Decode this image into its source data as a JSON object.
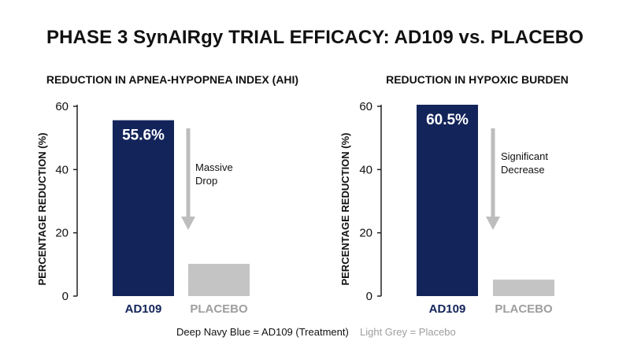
{
  "title": "PHASE 3 SynAIRgy TRIAL EFFICACY: AD109 vs. PLACEBO",
  "colors": {
    "treatment": "#13245a",
    "placebo": "#c4c4c4",
    "arrow": "#bdbdbd",
    "text": "#111111",
    "placebo_text": "#9e9e9e"
  },
  "legend": {
    "treatment": "Deep Navy Blue = AD109 (Treatment)",
    "placebo": "Light Grey = Placebo"
  },
  "chart_data": [
    {
      "type": "bar",
      "title": "REDUCTION IN APNEA-HYPOPNEA INDEX (AHI)",
      "ylabel": "PERCENTAGE REDUCTION (%)",
      "ylim": [
        0,
        60
      ],
      "yticks": [
        0,
        20,
        40,
        60
      ],
      "grid": false,
      "categories": [
        "AD109",
        "PLACEBO"
      ],
      "values": [
        55.6,
        10.2
      ],
      "data_labels": [
        "55.6%",
        ""
      ],
      "annotation": [
        "Massive",
        "Drop"
      ]
    },
    {
      "type": "bar",
      "title": "REDUCTION IN HYPOXIC BURDEN",
      "ylabel": "PERCENTAGE REDUCTION (%)",
      "ylim": [
        0,
        60
      ],
      "yticks": [
        0,
        20,
        40,
        60
      ],
      "grid": false,
      "categories": [
        "AD109",
        "PLACEBO"
      ],
      "values": [
        60.5,
        5.2
      ],
      "data_labels": [
        "60.5%",
        ""
      ],
      "annotation": [
        "Significant",
        "Decrease"
      ]
    }
  ]
}
